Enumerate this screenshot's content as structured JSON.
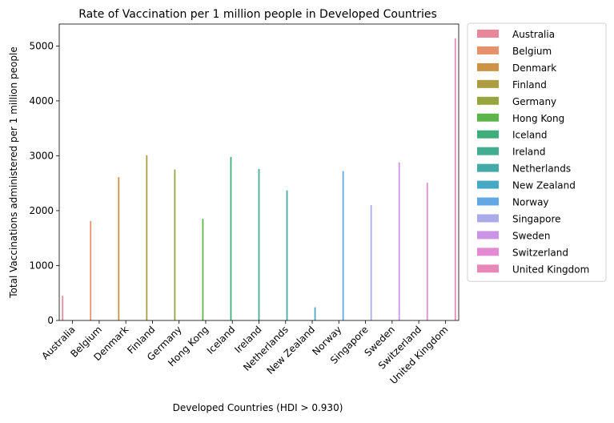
{
  "chart_data": {
    "type": "bar",
    "title": "Rate of Vaccination per 1 million people in Developed Countries",
    "xlabel": "Developed Countries (HDI > 0.930)",
    "ylabel": "Total Vaccinations administered per 1 million people",
    "ylim": [
      0,
      5400
    ],
    "yticks": [
      "0",
      "1000",
      "2000",
      "3000",
      "4000",
      "5000"
    ],
    "grid": false,
    "legend_placement": "outside-right",
    "categories": [
      "Australia",
      "Belgium",
      "Denmark",
      "Finland",
      "Germany",
      "Hong Kong",
      "Iceland",
      "Ireland",
      "Netherlands",
      "New Zealand",
      "Norway",
      "Singapore",
      "Sweden",
      "Switzerland",
      "United Kingdom"
    ],
    "series": [
      {
        "name": "Australia",
        "color": "#e8889a",
        "values": [
          450,
          0,
          0,
          0,
          0,
          0,
          0,
          0,
          0,
          0,
          0,
          0,
          0,
          0,
          0
        ]
      },
      {
        "name": "Belgium",
        "color": "#e5916b",
        "values": [
          0,
          1810,
          0,
          0,
          0,
          0,
          0,
          0,
          0,
          0,
          0,
          0,
          0,
          0,
          0
        ]
      },
      {
        "name": "Denmark",
        "color": "#cc9444",
        "values": [
          0,
          0,
          2610,
          0,
          0,
          0,
          0,
          0,
          0,
          0,
          0,
          0,
          0,
          0,
          0
        ]
      },
      {
        "name": "Finland",
        "color": "#ad9c42",
        "values": [
          0,
          0,
          0,
          3010,
          0,
          0,
          0,
          0,
          0,
          0,
          0,
          0,
          0,
          0,
          0
        ]
      },
      {
        "name": "Germany",
        "color": "#96a53d",
        "values": [
          0,
          0,
          0,
          0,
          2750,
          0,
          0,
          0,
          0,
          0,
          0,
          0,
          0,
          0,
          0
        ]
      },
      {
        "name": "Hong Kong",
        "color": "#5db54a",
        "values": [
          0,
          0,
          0,
          0,
          0,
          1850,
          0,
          0,
          0,
          0,
          0,
          0,
          0,
          0,
          0
        ]
      },
      {
        "name": "Iceland",
        "color": "#3fad7a",
        "values": [
          0,
          0,
          0,
          0,
          0,
          0,
          2980,
          0,
          0,
          0,
          0,
          0,
          0,
          0,
          0
        ]
      },
      {
        "name": "Ireland",
        "color": "#43ad93",
        "values": [
          0,
          0,
          0,
          0,
          0,
          0,
          0,
          2760,
          0,
          0,
          0,
          0,
          0,
          0,
          0
        ]
      },
      {
        "name": "Netherlands",
        "color": "#44aaa8",
        "values": [
          0,
          0,
          0,
          0,
          0,
          0,
          0,
          0,
          2370,
          0,
          0,
          0,
          0,
          0,
          0
        ]
      },
      {
        "name": "New Zealand",
        "color": "#46a9c4",
        "values": [
          0,
          0,
          0,
          0,
          0,
          0,
          0,
          0,
          0,
          240,
          0,
          0,
          0,
          0,
          0
        ]
      },
      {
        "name": "Norway",
        "color": "#62a8e4",
        "values": [
          0,
          0,
          0,
          0,
          0,
          0,
          0,
          0,
          0,
          0,
          2720,
          0,
          0,
          0,
          0
        ]
      },
      {
        "name": "Singapore",
        "color": "#aaaaea",
        "values": [
          0,
          0,
          0,
          0,
          0,
          0,
          0,
          0,
          0,
          0,
          0,
          2100,
          0,
          0,
          0
        ]
      },
      {
        "name": "Sweden",
        "color": "#cc94e4",
        "values": [
          0,
          0,
          0,
          0,
          0,
          0,
          0,
          0,
          0,
          0,
          0,
          0,
          2880,
          0,
          0
        ]
      },
      {
        "name": "Switzerland",
        "color": "#e48ad4",
        "values": [
          0,
          0,
          0,
          0,
          0,
          0,
          0,
          0,
          0,
          0,
          0,
          0,
          0,
          2510,
          0
        ]
      },
      {
        "name": "United Kingdom",
        "color": "#e888b8",
        "values": [
          0,
          0,
          0,
          0,
          0,
          0,
          0,
          0,
          0,
          0,
          0,
          0,
          0,
          0,
          5140
        ]
      }
    ]
  }
}
